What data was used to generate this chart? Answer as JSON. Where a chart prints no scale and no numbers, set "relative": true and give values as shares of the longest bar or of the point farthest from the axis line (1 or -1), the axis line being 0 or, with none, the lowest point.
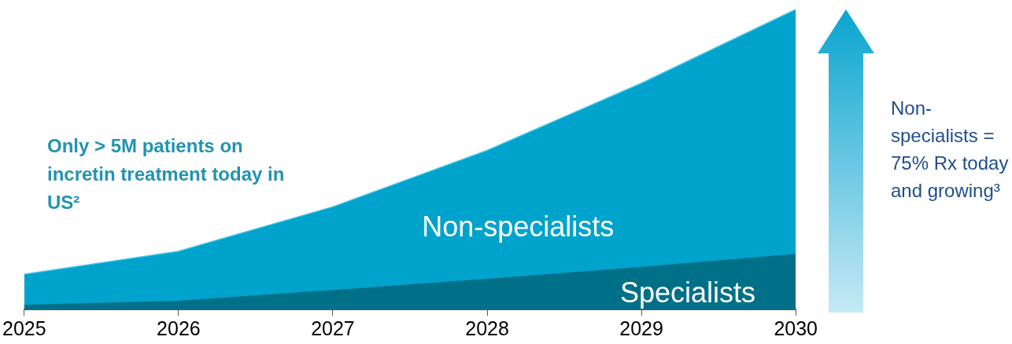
{
  "chart_data": {
    "type": "area",
    "relative": true,
    "stacked": true,
    "categories": [
      "2025",
      "2026",
      "2027",
      "2028",
      "2029",
      "2030"
    ],
    "series": [
      {
        "name": "Specialists",
        "color": "#007088",
        "values": [
          0.014,
          0.027,
          0.063,
          0.1,
          0.14,
          0.183
        ]
      },
      {
        "name": "Non-specialists",
        "color": "#00a3cc",
        "values": [
          0.103,
          0.167,
          0.279,
          0.43,
          0.614,
          0.817
        ]
      }
    ],
    "annotations": [
      "Only > 5M patients on incretin treatment today in US²",
      "Non-specialists = 75% Rx today and growing³"
    ]
  }
}
